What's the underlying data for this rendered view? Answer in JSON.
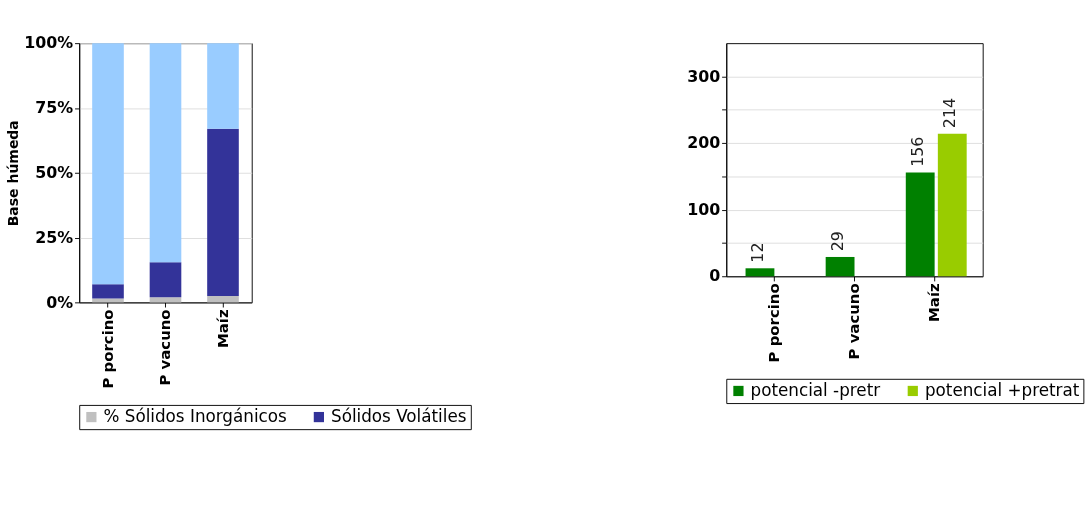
{
  "chart_data": [
    {
      "type": "bar",
      "stacked": true,
      "ylabel": "Base húmeda",
      "categories": [
        "P porcino",
        "P vacuno",
        "Maíz"
      ],
      "ylim": [
        0,
        100
      ],
      "yticks": [
        {
          "value": 0,
          "label": "0%"
        },
        {
          "value": 25,
          "label": "25%"
        },
        {
          "value": 50,
          "label": "50%"
        },
        {
          "value": 75,
          "label": "75%"
        },
        {
          "value": 100,
          "label": "100%"
        }
      ],
      "grid": "y",
      "legend": "bottom",
      "series": [
        {
          "name": "% Sólidos Inorgánicos",
          "color": "#c0c0c0",
          "values": [
            1.5,
            2,
            2.5
          ]
        },
        {
          "name": "Sólidos Volátiles",
          "color": "#333399",
          "values": [
            5.5,
            13.5,
            64.5
          ]
        },
        {
          "color": "#99ccff",
          "values": [
            93,
            84.5,
            33
          ]
        }
      ]
    },
    {
      "type": "bar",
      "categories": [
        "P porcino",
        "P vacuno",
        "Maíz"
      ],
      "ylim": [
        0,
        350
      ],
      "yticks": [
        0,
        {
          "value": 50,
          "label": null
        },
        100,
        {
          "value": 150,
          "label": null
        },
        200,
        {
          "value": 250,
          "label": null
        },
        300
      ],
      "grid": "y",
      "legend": "bottom",
      "data_labels": true,
      "series": [
        {
          "name": "potencial -pretr",
          "color": "#008000",
          "values": [
            12,
            29,
            156
          ]
        },
        {
          "name": "potencial +pretrat",
          "color": "#99cc00",
          "values": [
            null,
            null,
            214
          ]
        }
      ]
    }
  ]
}
